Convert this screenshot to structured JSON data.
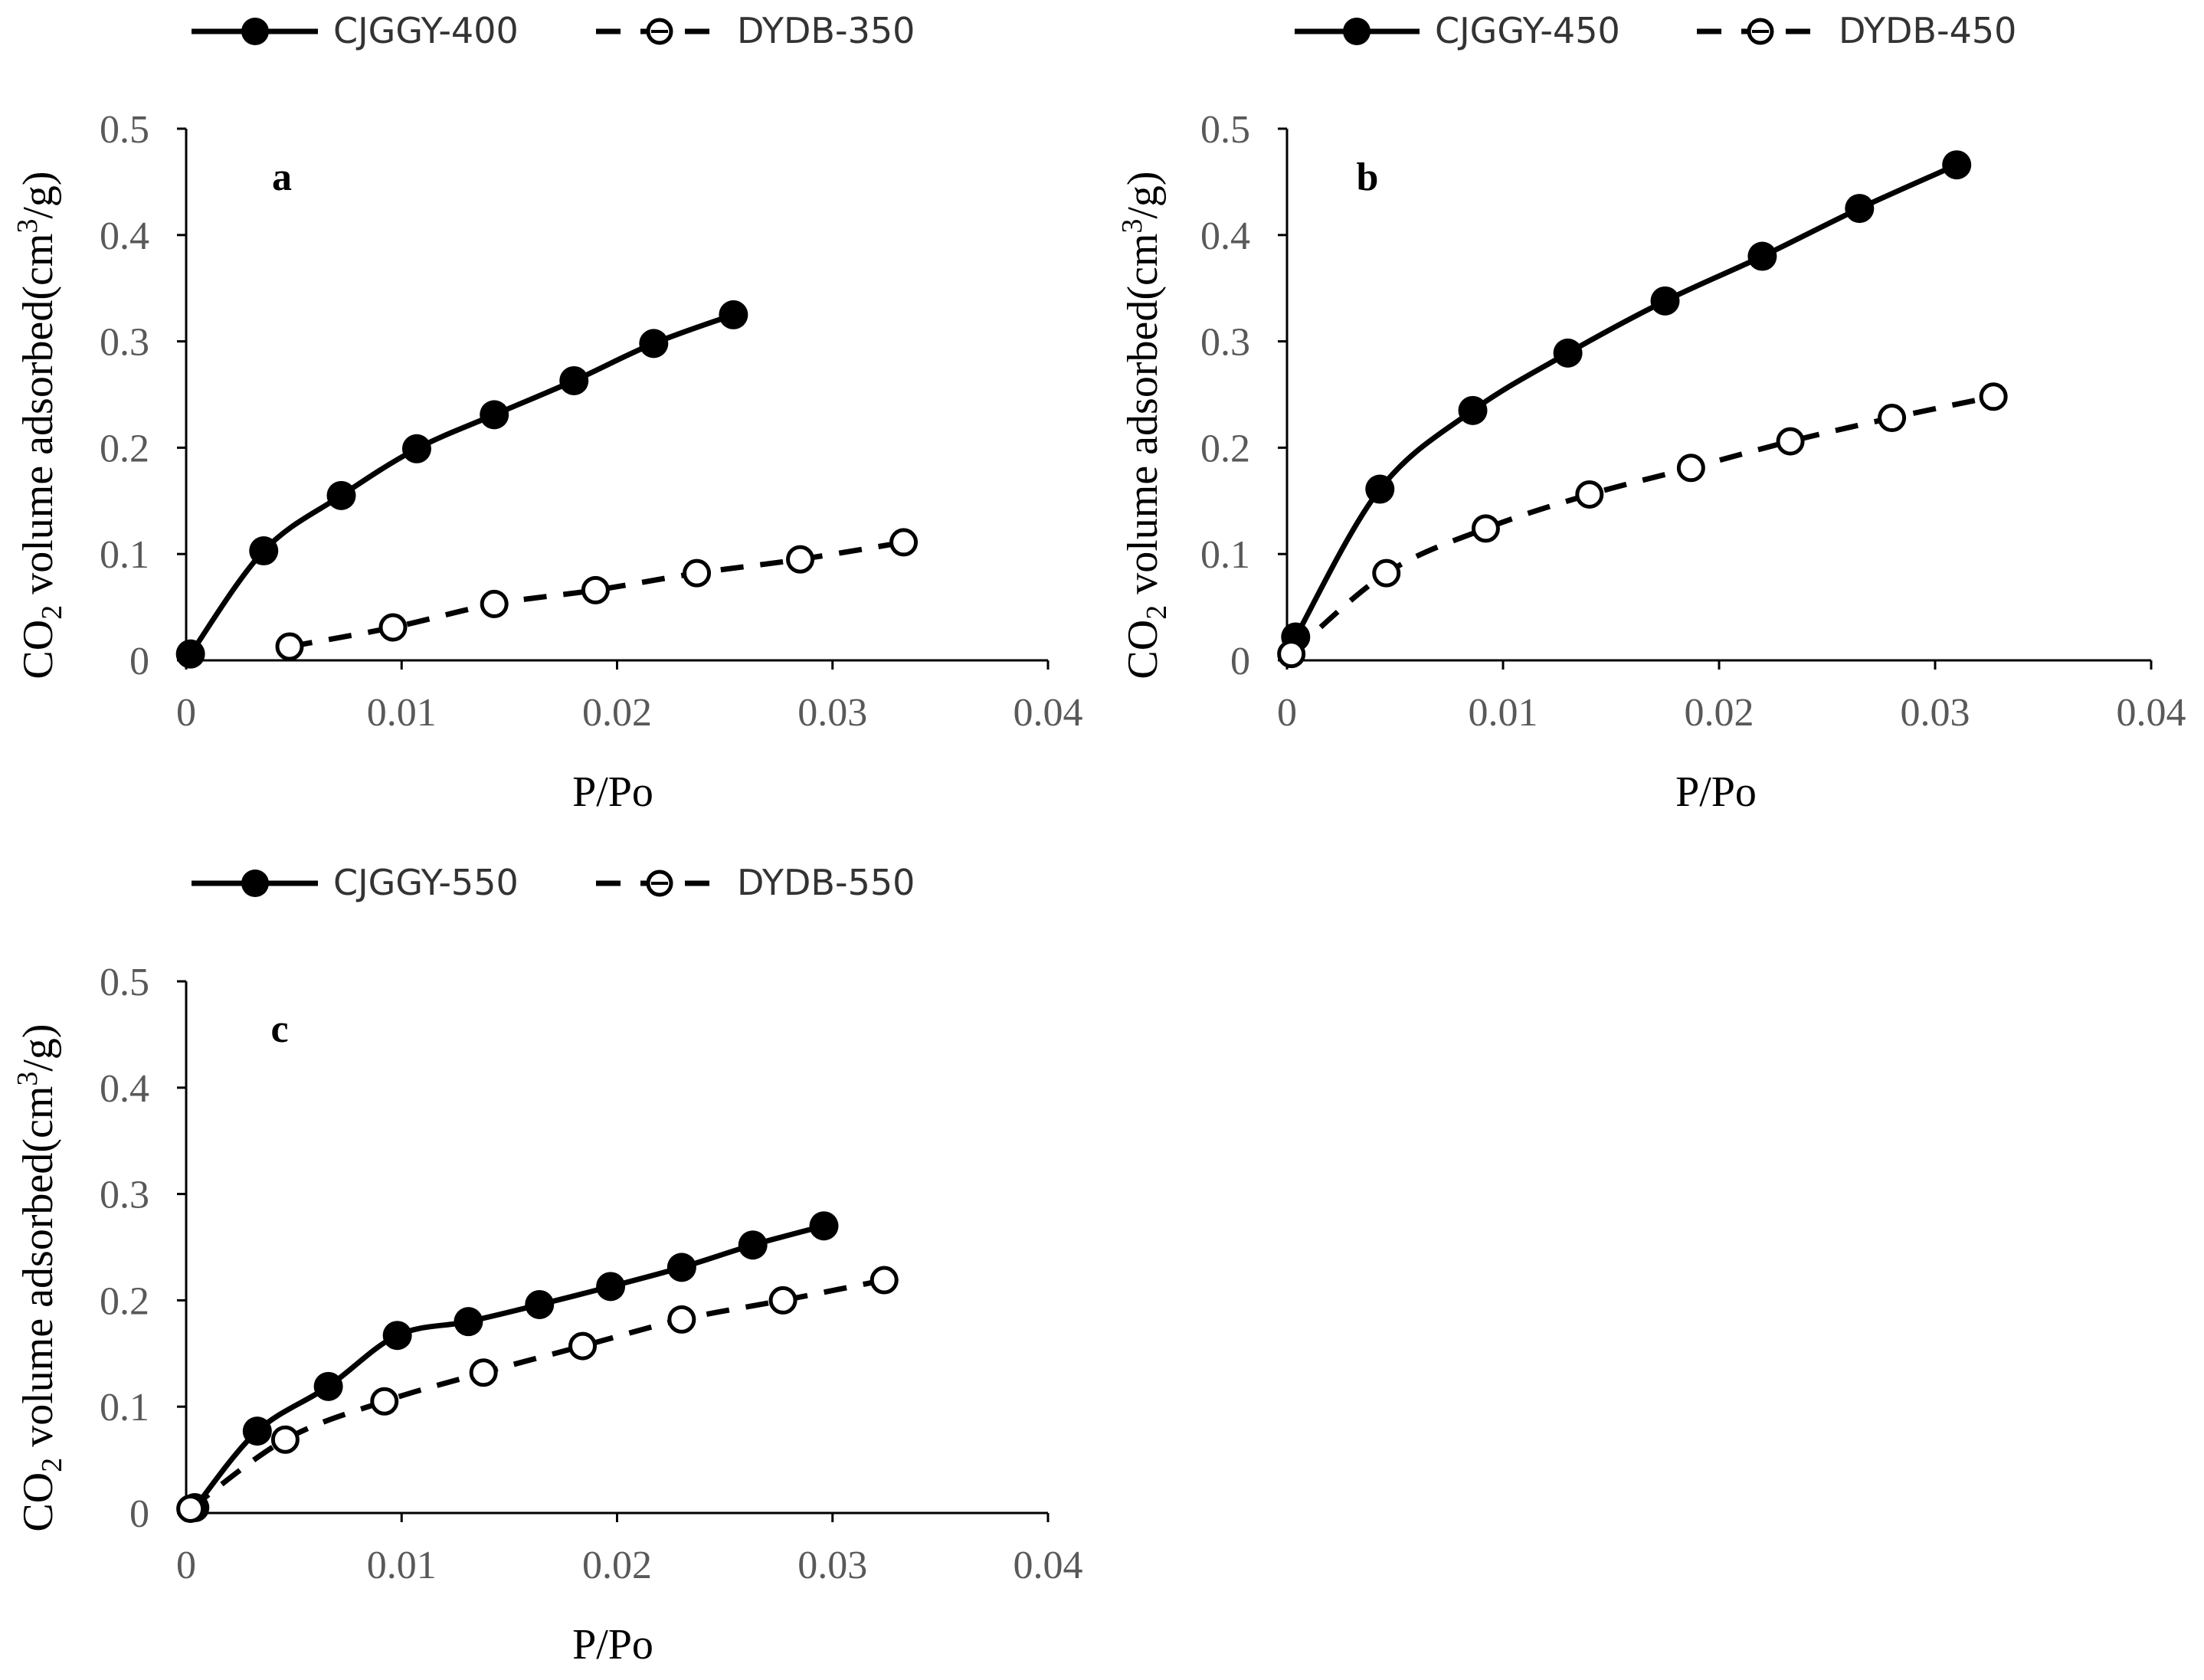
{
  "figure": {
    "x_label": "P/Po",
    "y_label_prefix": "CO",
    "y_label_sub": "2",
    "y_label_mid": " volume adsorbed(cm",
    "y_label_sup": "3",
    "y_label_suffix": "/g)"
  },
  "chart_data": [
    {
      "type": "line",
      "panel_label": "a",
      "xlabel": "P/Po",
      "ylabel": "CO2 volume adsorbed(cm3/g)",
      "xlim": [
        0,
        0.04
      ],
      "ylim": [
        0,
        0.5
      ],
      "x_ticks": [
        0,
        0.01,
        0.02,
        0.03,
        0.04
      ],
      "x_tick_labels": [
        "0",
        "0.01",
        "0.02",
        "0.03",
        "0.04"
      ],
      "y_ticks": [
        0,
        0.1,
        0.2,
        0.3,
        0.4,
        0.5
      ],
      "y_tick_labels": [
        "0",
        "0.1",
        "0.2",
        "0.3",
        "0.4",
        "0.5"
      ],
      "legend_position": "top",
      "series": [
        {
          "name": "CJGGY-400",
          "style": "solid",
          "marker": "filled-circle",
          "x": [
            0.0002,
            0.0036,
            0.0072,
            0.0107,
            0.0143,
            0.018,
            0.0217,
            0.0254
          ],
          "y": [
            0.006,
            0.103,
            0.155,
            0.199,
            0.231,
            0.263,
            0.298,
            0.325
          ]
        },
        {
          "name": "DYDB-350",
          "style": "dashed",
          "marker": "open-circle",
          "x": [
            0.0048,
            0.0096,
            0.0143,
            0.019,
            0.0237,
            0.0285,
            0.0333
          ],
          "y": [
            0.013,
            0.031,
            0.053,
            0.066,
            0.082,
            0.095,
            0.111
          ]
        }
      ]
    },
    {
      "type": "line",
      "panel_label": "b",
      "xlabel": "P/Po",
      "ylabel": "CO2 volume adsorbed(cm3/g)",
      "xlim": [
        0,
        0.04
      ],
      "ylim": [
        0,
        0.5
      ],
      "x_ticks": [
        0,
        0.01,
        0.02,
        0.03,
        0.04
      ],
      "x_tick_labels": [
        "0",
        "0.01",
        "0.02",
        "0.03",
        "0.04"
      ],
      "y_ticks": [
        0,
        0.1,
        0.2,
        0.3,
        0.4,
        0.5
      ],
      "y_tick_labels": [
        "0",
        "0.1",
        "0.2",
        "0.3",
        "0.4",
        "0.5"
      ],
      "legend_position": "top",
      "series": [
        {
          "name": "CJGGY-450",
          "style": "solid",
          "marker": "filled-circle",
          "x": [
            0.0004,
            0.0043,
            0.0086,
            0.013,
            0.0175,
            0.022,
            0.0265,
            0.031
          ],
          "y": [
            0.022,
            0.161,
            0.235,
            0.289,
            0.338,
            0.38,
            0.425,
            0.466
          ]
        },
        {
          "name": "DYDB-450",
          "style": "dashed",
          "marker": "open-circle",
          "x": [
            0.0002,
            0.0046,
            0.0092,
            0.014,
            0.0187,
            0.0233,
            0.028,
            0.0327
          ],
          "y": [
            0.006,
            0.082,
            0.124,
            0.156,
            0.181,
            0.206,
            0.228,
            0.248
          ]
        }
      ]
    },
    {
      "type": "line",
      "panel_label": "c",
      "xlabel": "P/Po",
      "ylabel": "CO2 volume adsorbed(cm3/g)",
      "xlim": [
        0,
        0.04
      ],
      "ylim": [
        0,
        0.5
      ],
      "x_ticks": [
        0,
        0.01,
        0.02,
        0.03,
        0.04
      ],
      "x_tick_labels": [
        "0",
        "0.01",
        "0.02",
        "0.03",
        "0.04"
      ],
      "y_ticks": [
        0,
        0.1,
        0.2,
        0.3,
        0.4,
        0.5
      ],
      "y_tick_labels": [
        "0",
        "0.1",
        "0.2",
        "0.3",
        "0.4",
        "0.5"
      ],
      "legend_position": "top",
      "series": [
        {
          "name": "CJGGY-550",
          "style": "solid",
          "marker": "filled-circle",
          "x": [
            0.0004,
            0.0033,
            0.0066,
            0.0098,
            0.0131,
            0.0164,
            0.0197,
            0.023,
            0.0263,
            0.0296
          ],
          "y": [
            0.005,
            0.077,
            0.119,
            0.167,
            0.18,
            0.196,
            0.213,
            0.231,
            0.252,
            0.27
          ]
        },
        {
          "name": "DYDB-550",
          "style": "dashed",
          "marker": "open-circle",
          "x": [
            0.0002,
            0.0046,
            0.0092,
            0.0138,
            0.0184,
            0.023,
            0.0277,
            0.0324
          ],
          "y": [
            0.004,
            0.069,
            0.105,
            0.132,
            0.157,
            0.182,
            0.2,
            0.219
          ]
        }
      ]
    }
  ]
}
